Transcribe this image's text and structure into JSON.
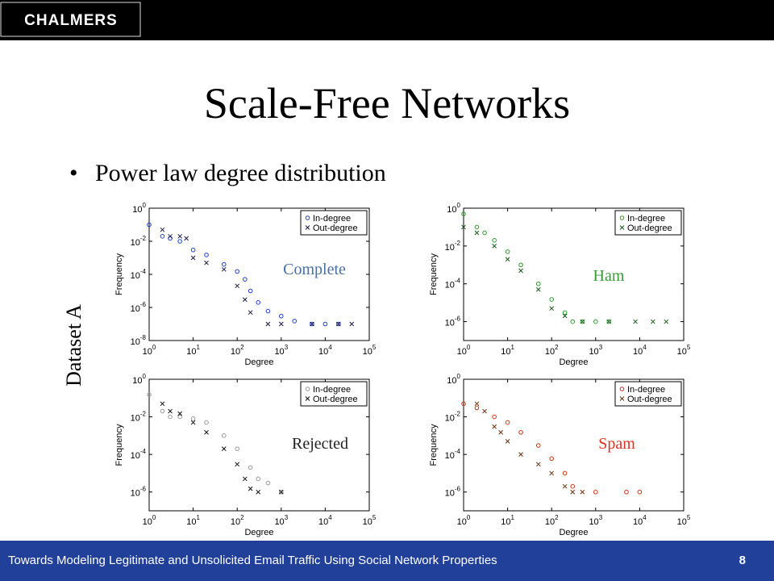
{
  "slide": {
    "logo": "CHALMERS",
    "title": "Scale-Free Networks",
    "bullet": "Power law degree distribution",
    "side_label": "Dataset A",
    "footer": "Towards Modeling Legitimate and Unsolicited Email Traffic Using Social Network Properties",
    "page": 8
  },
  "chart_data": [
    {
      "type": "scatter",
      "annotation": "Complete",
      "annotation_color": "#4a6fa5",
      "xlabel": "Degree",
      "ylabel": "Frequency",
      "log_x": true,
      "log_y": true,
      "legend": "upper right",
      "xlim": [
        1,
        100000
      ],
      "ylim": [
        1e-08,
        1
      ],
      "xticks": [
        {
          "value": 1,
          "label": "10",
          "exponent": "0"
        },
        {
          "value": 10,
          "label": "10",
          "exponent": "1"
        },
        {
          "value": 100,
          "label": "10",
          "exponent": "2"
        },
        {
          "value": 1000,
          "label": "10",
          "exponent": "3"
        },
        {
          "value": 10000,
          "label": "10",
          "exponent": "4"
        },
        {
          "value": 100000,
          "label": "10",
          "exponent": "5"
        }
      ],
      "yticks": [
        {
          "value": 1,
          "label": "10",
          "exponent": "0"
        },
        {
          "value": 0.01,
          "label": "10",
          "exponent": "-2"
        },
        {
          "value": 0.0001,
          "label": "10",
          "exponent": "-4"
        },
        {
          "value": 1e-06,
          "label": "10",
          "exponent": "-6"
        },
        {
          "value": 1e-08,
          "label": "10",
          "exponent": "-8"
        }
      ],
      "series": [
        {
          "name": "In-degree",
          "color": "#1f3fd0",
          "marker": "o",
          "x": [
            1,
            2,
            3,
            5,
            10,
            20,
            50,
            100,
            150,
            200,
            300,
            500,
            1000,
            2000,
            5000,
            10000,
            20000
          ],
          "values": [
            0.1,
            0.02,
            0.015,
            0.01,
            0.003,
            0.0015,
            0.0004,
            0.00015,
            5e-05,
            1e-05,
            2e-06,
            6e-07,
            3e-07,
            1.5e-07,
            1e-07,
            1e-07,
            1e-07
          ]
        },
        {
          "name": "Out-degree",
          "color": "#1a1a4a",
          "marker": "x",
          "x": [
            2,
            3,
            5,
            7,
            10,
            20,
            50,
            100,
            150,
            200,
            500,
            1000,
            5000,
            20000,
            40000
          ],
          "values": [
            0.05,
            0.02,
            0.02,
            0.015,
            0.001,
            0.0005,
            0.0002,
            2e-05,
            3e-06,
            5e-07,
            1e-07,
            1e-07,
            1e-07,
            1e-07,
            1e-07
          ]
        }
      ]
    },
    {
      "type": "scatter",
      "annotation": "Ham",
      "annotation_color": "#3a9a3a",
      "xlabel": "Degree",
      "ylabel": "Frequency",
      "log_x": true,
      "log_y": true,
      "legend": "upper right",
      "xlim": [
        1,
        100000
      ],
      "ylim": [
        1e-07,
        1
      ],
      "xticks": [
        {
          "value": 1,
          "label": "10",
          "exponent": "0"
        },
        {
          "value": 10,
          "label": "10",
          "exponent": "1"
        },
        {
          "value": 100,
          "label": "10",
          "exponent": "2"
        },
        {
          "value": 1000,
          "label": "10",
          "exponent": "3"
        },
        {
          "value": 10000,
          "label": "10",
          "exponent": "4"
        },
        {
          "value": 100000,
          "label": "10",
          "exponent": "5"
        }
      ],
      "yticks": [
        {
          "value": 1,
          "label": "10",
          "exponent": "0"
        },
        {
          "value": 0.01,
          "label": "10",
          "exponent": "-2"
        },
        {
          "value": 0.0001,
          "label": "10",
          "exponent": "-4"
        },
        {
          "value": 1e-06,
          "label": "10",
          "exponent": "-6"
        }
      ],
      "series": [
        {
          "name": "In-degree",
          "color": "#2e9a2e",
          "marker": "o",
          "x": [
            1,
            2,
            3,
            5,
            10,
            20,
            50,
            100,
            200,
            300,
            500,
            1000,
            2000
          ],
          "values": [
            0.5,
            0.1,
            0.05,
            0.02,
            0.005,
            0.001,
            0.0001,
            1.5e-05,
            3e-06,
            1e-06,
            1e-06,
            1e-06,
            1e-06
          ]
        },
        {
          "name": "Out-degree",
          "color": "#1a5a1a",
          "marker": "x",
          "x": [
            1,
            2,
            5,
            10,
            20,
            50,
            100,
            200,
            500,
            2000,
            8000,
            20000,
            40000
          ],
          "values": [
            0.1,
            0.05,
            0.01,
            0.002,
            0.0005,
            5e-05,
            5e-06,
            2e-06,
            1e-06,
            1e-06,
            1e-06,
            1e-06,
            1e-06
          ]
        }
      ]
    },
    {
      "type": "scatter",
      "annotation": "Rejected",
      "annotation_color": "#222222",
      "xlabel": "Degree",
      "ylabel": "Frequency",
      "log_x": true,
      "log_y": true,
      "legend": "upper right",
      "xlim": [
        1,
        100000
      ],
      "ylim": [
        1e-07,
        1
      ],
      "xticks": [
        {
          "value": 1,
          "label": "10",
          "exponent": "0"
        },
        {
          "value": 10,
          "label": "10",
          "exponent": "1"
        },
        {
          "value": 100,
          "label": "10",
          "exponent": "2"
        },
        {
          "value": 1000,
          "label": "10",
          "exponent": "3"
        },
        {
          "value": 10000,
          "label": "10",
          "exponent": "4"
        },
        {
          "value": 100000,
          "label": "10",
          "exponent": "5"
        }
      ],
      "yticks": [
        {
          "value": 1,
          "label": "10",
          "exponent": "0"
        },
        {
          "value": 0.01,
          "label": "10",
          "exponent": "-2"
        },
        {
          "value": 0.0001,
          "label": "10",
          "exponent": "-4"
        },
        {
          "value": 1e-06,
          "label": "10",
          "exponent": "-6"
        }
      ],
      "series": [
        {
          "name": "In-degree",
          "color": "#999999",
          "marker": "o",
          "x": [
            1,
            2,
            3,
            5,
            10,
            20,
            50,
            100,
            200,
            300,
            500,
            1000
          ],
          "values": [
            0.15,
            0.02,
            0.01,
            0.01,
            0.008,
            0.005,
            0.001,
            0.0002,
            2e-05,
            5e-06,
            3e-06,
            1e-06
          ]
        },
        {
          "name": "Out-degree",
          "color": "#111111",
          "marker": "x",
          "x": [
            2,
            3,
            5,
            10,
            20,
            50,
            100,
            150,
            200,
            300,
            1000
          ],
          "values": [
            0.05,
            0.02,
            0.015,
            0.005,
            0.0015,
            0.0002,
            3e-05,
            5e-06,
            1.5e-06,
            1e-06,
            1e-06
          ]
        }
      ]
    },
    {
      "type": "scatter",
      "annotation": "Spam",
      "annotation_color": "#e03020",
      "xlabel": "Degree",
      "ylabel": "Frequency",
      "log_x": true,
      "log_y": true,
      "legend": "upper right",
      "xlim": [
        1,
        100000
      ],
      "ylim": [
        1e-07,
        1
      ],
      "xticks": [
        {
          "value": 1,
          "label": "10",
          "exponent": "0"
        },
        {
          "value": 10,
          "label": "10",
          "exponent": "1"
        },
        {
          "value": 100,
          "label": "10",
          "exponent": "2"
        },
        {
          "value": 1000,
          "label": "10",
          "exponent": "3"
        },
        {
          "value": 10000,
          "label": "10",
          "exponent": "4"
        },
        {
          "value": 100000,
          "label": "10",
          "exponent": "5"
        }
      ],
      "yticks": [
        {
          "value": 1,
          "label": "10",
          "exponent": "0"
        },
        {
          "value": 0.01,
          "label": "10",
          "exponent": "-2"
        },
        {
          "value": 0.0001,
          "label": "10",
          "exponent": "-4"
        },
        {
          "value": 1e-06,
          "label": "10",
          "exponent": "-6"
        }
      ],
      "series": [
        {
          "name": "In-degree",
          "color": "#d03010",
          "marker": "o",
          "x": [
            1,
            2,
            5,
            10,
            20,
            50,
            100,
            200,
            300,
            1000,
            5000,
            10000
          ],
          "values": [
            0.05,
            0.03,
            0.01,
            0.005,
            0.0015,
            0.0003,
            6e-05,
            1e-05,
            2e-06,
            1e-06,
            1e-06,
            1e-06
          ]
        },
        {
          "name": "Out-degree",
          "color": "#6a3010",
          "marker": "x",
          "x": [
            2,
            3,
            5,
            7,
            10,
            20,
            50,
            100,
            200,
            300,
            500
          ],
          "values": [
            0.05,
            0.02,
            0.003,
            0.0015,
            0.0005,
            0.0001,
            3e-05,
            1e-05,
            2e-06,
            1e-06,
            1e-06
          ]
        }
      ]
    }
  ]
}
